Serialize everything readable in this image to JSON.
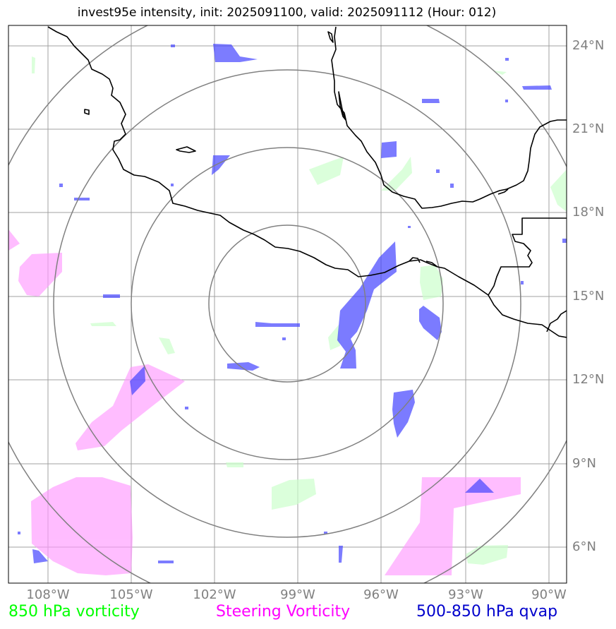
{
  "title": "invest95e intensity, init: 2025091100, valid: 2025091112 (Hour: 012)",
  "storm_id": "invest95e",
  "init_time": "2025091100",
  "valid_time": "2025091112",
  "forecast_hour": "012",
  "lat_labels": [
    "24°N",
    "21°N",
    "18°N",
    "15°N",
    "12°N",
    "9°N",
    "6°N"
  ],
  "lon_labels": [
    "108°W",
    "105°W",
    "102°W",
    "99°W",
    "96°W",
    "93°W",
    "90°W"
  ],
  "legend": {
    "vort850": {
      "label": "850 hPa vorticity",
      "color": "#00ff00"
    },
    "steering": {
      "label": "Steering Vorticity",
      "color": "#ff00ff"
    },
    "qvap": {
      "label": "500-850 hPa qvap",
      "color": "#0000cc"
    }
  },
  "colors": {
    "grid": "#a0a0a0",
    "range_rings": "#808080",
    "coastline": "#000000",
    "vort850_fill": "#ccffcc",
    "steering_fill": "#ff99ff",
    "qvap_fill": "#4444ff"
  }
}
